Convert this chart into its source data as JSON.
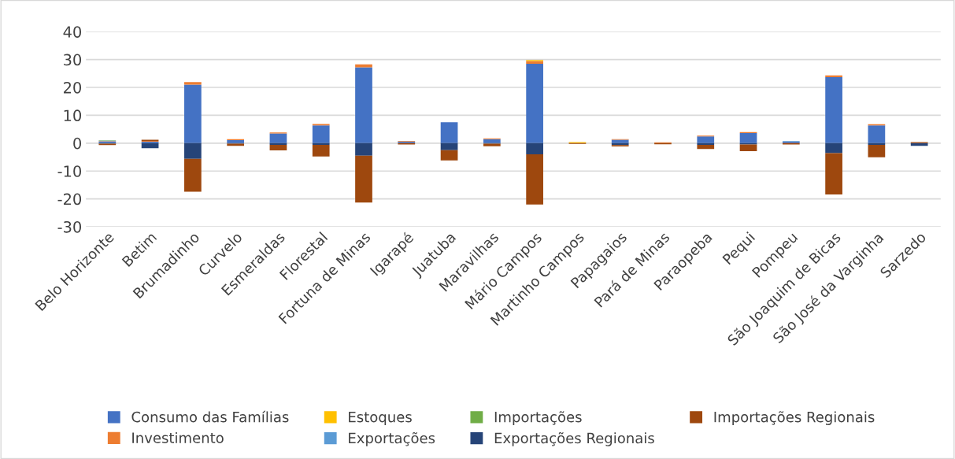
{
  "chart_data": {
    "type": "bar",
    "stacked": true,
    "categories": [
      "Belo Horizonte",
      "Betim",
      "Brumadinho",
      "Curvelo",
      "Esmeraldas",
      "Florestal",
      "Fortuna de Minas",
      "Igarapé",
      "Juatuba",
      "Maravilhas",
      "Mário Campos",
      "Martinho Campos",
      "Papagaios",
      "Pará de Minas",
      "Paraopeba",
      "Pequi",
      "Pompeu",
      "São Joaquim de Bicas",
      "São José da Varginha",
      "Sarzedo"
    ],
    "series": [
      {
        "name": "Consumo das Famílias",
        "color": "#4472c4",
        "values": [
          0.6,
          0.5,
          21,
          1.1,
          3.5,
          6.4,
          27.2,
          0.6,
          7.5,
          1.4,
          28.5,
          0,
          1.2,
          0,
          2.4,
          3.6,
          0.5,
          23.7,
          6.4,
          0
        ]
      },
      {
        "name": "Investimento",
        "color": "#ed7d31",
        "values": [
          0.1,
          0.3,
          0.9,
          0.3,
          0.3,
          0.5,
          1.1,
          0.2,
          0,
          0.3,
          1.0,
          0,
          0.2,
          0.3,
          0.3,
          0.4,
          0,
          0.6,
          0.4,
          0
        ]
      },
      {
        "name": "Estoques",
        "color": "#ffc000",
        "values": [
          0,
          0,
          0,
          0,
          0,
          0,
          0,
          0,
          0,
          0,
          0.3,
          0.4,
          0,
          0,
          0,
          0,
          0,
          0,
          0,
          0
        ]
      },
      {
        "name": "Exportações",
        "color": "#5b9bd5",
        "values": [
          0.2,
          0,
          0,
          0,
          0,
          0,
          0,
          0,
          0,
          0,
          0,
          0,
          0,
          0,
          0,
          0,
          0.2,
          0,
          0,
          0
        ]
      },
      {
        "name": "Importações",
        "color": "#70ad47",
        "values": [
          0.1,
          0,
          0,
          0,
          0,
          0,
          0,
          0,
          0,
          0,
          0,
          0,
          0,
          0,
          0,
          0,
          0,
          0,
          0,
          0
        ]
      },
      {
        "name": "Exportações Regionais",
        "color": "#264478",
        "values": [
          -0.2,
          -1.8,
          -5.6,
          -0.2,
          -0.6,
          -0.6,
          -4.5,
          0,
          -2.5,
          -0.2,
          -4.0,
          0,
          -0.7,
          0,
          -0.6,
          -0.5,
          0,
          -3.6,
          -0.6,
          -1.0
        ]
      },
      {
        "name": "Importações Regionais",
        "color": "#9e480e",
        "values": [
          -0.5,
          0.4,
          -11.8,
          -0.8,
          -2.0,
          -4.2,
          -16.8,
          -0.5,
          -3.7,
          -0.9,
          -18.0,
          -0.3,
          -0.5,
          -0.4,
          -1.5,
          -2.4,
          -0.5,
          -14.8,
          -4.5,
          0.4
        ]
      }
    ],
    "ylim": [
      -30,
      40
    ],
    "yticks": [
      -30,
      -20,
      -10,
      0,
      10,
      20,
      30,
      40
    ],
    "grid": "y",
    "legend": "bottom"
  }
}
